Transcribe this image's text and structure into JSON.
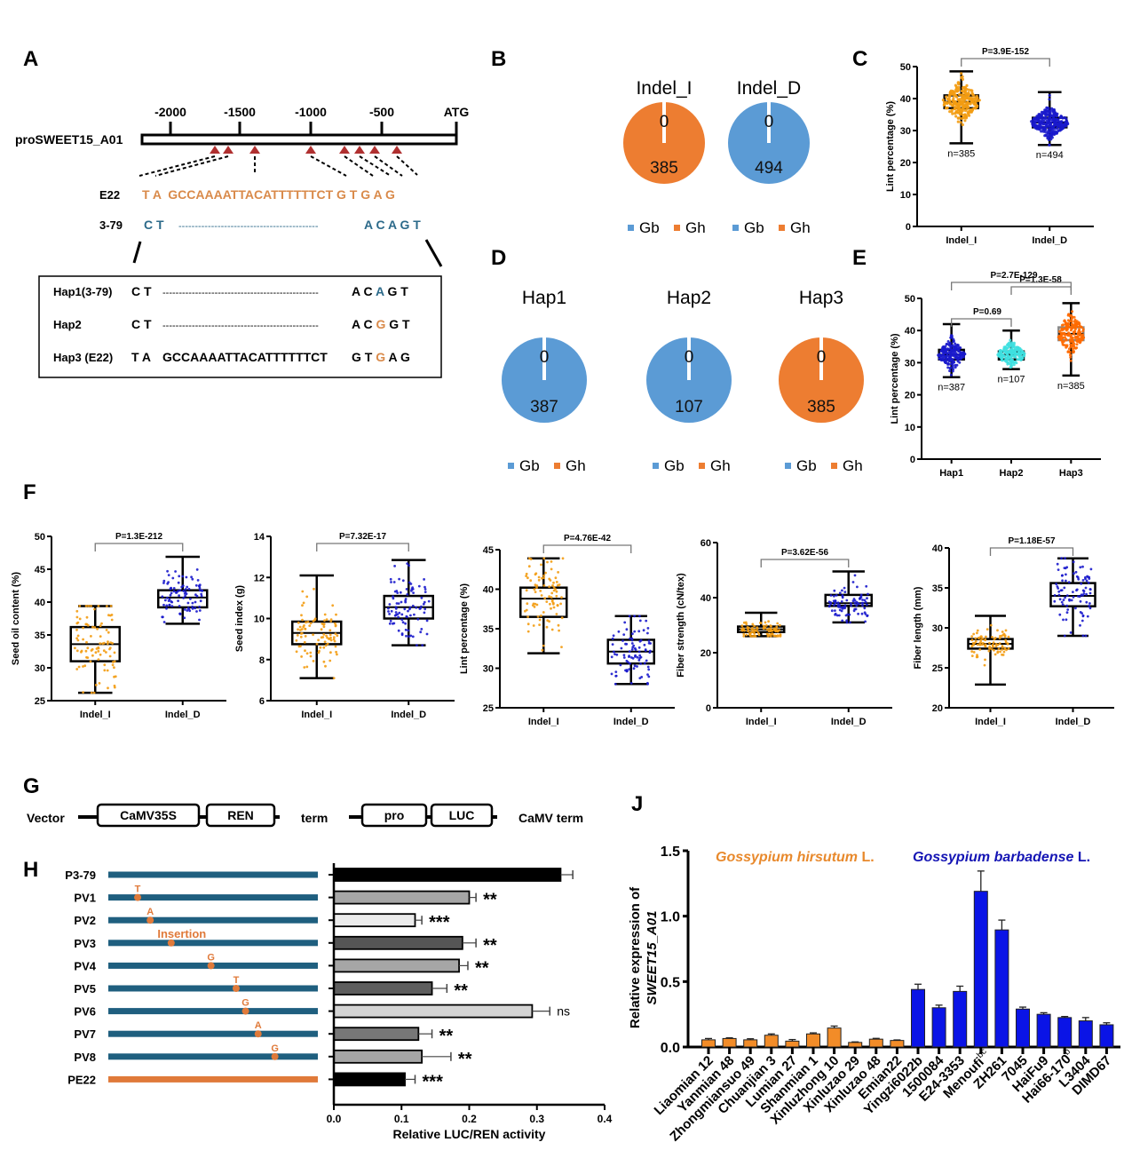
{
  "colors": {
    "orange": "#ED7D31",
    "blue": "#5B9BD5",
    "seq_orange": "#D98A4A",
    "seq_blue": "#2C6A8A",
    "dot_orange": "#F39C12",
    "dot_blue": "#1A1ACC",
    "cyan": "#3FE0E0",
    "hap3_orange": "#FF6A00",
    "promoter_blue": "#1F5F7F",
    "promoter_orange": "#E07A3A",
    "triangle_red": "#B03030",
    "bar_blue": "#0A14E6"
  },
  "panels": {
    "A": {
      "letter": "A",
      "gene_label": "proSWEET15_A01",
      "ticks": [
        "-2000",
        "-1500",
        "-1000",
        "-500",
        "ATG"
      ],
      "e22_label": "E22",
      "e22_seq": "T A  GCCAAAATTACATTTTTTCT G T G A G",
      "s379_label": "3-79",
      "s379_left": "C T",
      "s379_dashes": "-------------------------------------------",
      "s379_right": "A C A G T",
      "haplotypes": [
        {
          "label": "Hap1(3-79)",
          "left": "C T",
          "middle": "------------------------------------------------",
          "pre": "A C ",
          "var": "A",
          "post": " G T",
          "var_color": "blue"
        },
        {
          "label": "Hap2",
          "left": "C T",
          "middle": "------------------------------------------------",
          "pre": "A C ",
          "var": "G",
          "post": " G T",
          "var_color": "orange"
        },
        {
          "label": "Hap3 (E22)",
          "left": "T A",
          "middle": "GCCAAAATTACATTTTTTCT",
          "pre": "G T ",
          "var": "G",
          "post": " A G",
          "var_color": "orange"
        }
      ]
    },
    "B": {
      "letter": "B",
      "pies": [
        {
          "title": "Indel_I",
          "slices": [
            {
              "name": "Gb",
              "value": 0
            },
            {
              "name": "Gh",
              "value": 385
            }
          ],
          "dominant": "Gh"
        },
        {
          "title": "Indel_D",
          "slices": [
            {
              "name": "Gb",
              "value": 494
            },
            {
              "name": "Gh",
              "value": 0
            }
          ],
          "dominant": "Gb"
        }
      ],
      "legend": [
        "Gb",
        "Gh"
      ]
    },
    "D": {
      "letter": "D",
      "pies": [
        {
          "title": "Hap1",
          "slices": [
            {
              "name": "Gb",
              "value": 387
            },
            {
              "name": "Gh",
              "value": 0
            }
          ],
          "dominant": "Gb"
        },
        {
          "title": "Hap2",
          "slices": [
            {
              "name": "Gb",
              "value": 107
            },
            {
              "name": "Gh",
              "value": 0
            }
          ],
          "dominant": "Gb"
        },
        {
          "title": "Hap3",
          "slices": [
            {
              "name": "Gb",
              "value": 0
            },
            {
              "name": "Gh",
              "value": 385
            }
          ],
          "dominant": "Gh"
        }
      ],
      "legend": [
        "Gb",
        "Gh"
      ]
    },
    "C": {
      "letter": "C"
    },
    "E": {
      "letter": "E"
    },
    "F": {
      "letter": "F"
    },
    "G": {
      "letter": "G",
      "vector_label": "Vector",
      "boxes": [
        "CaMV35S",
        "REN",
        "pro",
        "LUC"
      ],
      "term1": "term",
      "term2": "CaMV term"
    },
    "H": {
      "letter": "H"
    },
    "J": {
      "letter": "J"
    }
  },
  "chart_data": [
    {
      "id": "C",
      "type": "box",
      "ylabel": "Lint percentage (%)",
      "ylim": [
        0,
        50
      ],
      "yticks": [
        0,
        10,
        20,
        30,
        40,
        50
      ],
      "categories": [
        "Indel_I",
        "Indel_D"
      ],
      "boxes": [
        {
          "name": "Indel_I",
          "min": 26,
          "q1": 37,
          "median": 39,
          "q3": 41,
          "max": 48.5,
          "n_label": "n=385",
          "color": "dot_orange"
        },
        {
          "name": "Indel_D",
          "min": 25.5,
          "q1": 31,
          "median": 32.5,
          "q3": 34,
          "max": 42,
          "n_label": "n=494",
          "color": "dot_blue"
        }
      ],
      "brackets": [
        {
          "from": 0,
          "to": 1,
          "label": "P=3.9E-152"
        }
      ]
    },
    {
      "id": "E",
      "type": "box",
      "ylabel": "Lint percentage (%)",
      "ylim": [
        0,
        50
      ],
      "yticks": [
        0,
        10,
        20,
        30,
        40,
        50
      ],
      "categories": [
        "Hap1",
        "Hap2",
        "Hap3"
      ],
      "boxes": [
        {
          "name": "Hap1",
          "min": 25.5,
          "q1": 31,
          "median": 32.5,
          "q3": 34,
          "max": 42,
          "n_label": "n=387",
          "color": "dot_blue"
        },
        {
          "name": "Hap2",
          "min": 28,
          "q1": 31,
          "median": 32.5,
          "q3": 33.5,
          "max": 40,
          "n_label": "n=107",
          "color": "cyan"
        },
        {
          "name": "Hap3",
          "min": 26,
          "q1": 37,
          "median": 39,
          "q3": 41,
          "max": 48.5,
          "n_label": "n=385",
          "color": "hap3_orange"
        }
      ],
      "brackets": [
        {
          "from": 0,
          "to": 1,
          "label": "P=0.69"
        },
        {
          "from": 1,
          "to": 2,
          "label": "P=1.3E-58"
        },
        {
          "from": 0,
          "to": 2,
          "label": "P=2.7E-129"
        }
      ]
    },
    {
      "id": "F1",
      "type": "box",
      "ylabel": "Seed oil content (%)",
      "ylim": [
        25,
        50
      ],
      "yticks": [
        25,
        30,
        35,
        40,
        45,
        50
      ],
      "categories": [
        "Indel_I",
        "Indel_D"
      ],
      "boxes": [
        {
          "name": "Indel_I",
          "min": 26.2,
          "q1": 31,
          "median": 33.6,
          "q3": 36.2,
          "max": 39.4,
          "color": "dot_orange"
        },
        {
          "name": "Indel_D",
          "min": 36.7,
          "q1": 39.2,
          "median": 40.7,
          "q3": 41.8,
          "max": 46.9,
          "color": "dot_blue"
        }
      ],
      "brackets": [
        {
          "from": 0,
          "to": 1,
          "label": "P=1.3E-212"
        }
      ]
    },
    {
      "id": "F2",
      "type": "box",
      "ylabel": "Seed index (g)",
      "ylim": [
        6,
        14
      ],
      "yticks": [
        6,
        8,
        10,
        12,
        14
      ],
      "categories": [
        "Indel_I",
        "Indel_D"
      ],
      "boxes": [
        {
          "name": "Indel_I",
          "min": 7.1,
          "q1": 8.75,
          "median": 9.3,
          "q3": 9.85,
          "max": 12.1,
          "color": "dot_orange"
        },
        {
          "name": "Indel_D",
          "min": 8.7,
          "q1": 10.0,
          "median": 10.55,
          "q3": 11.1,
          "max": 12.85,
          "color": "dot_blue"
        }
      ],
      "brackets": [
        {
          "from": 0,
          "to": 1,
          "label": "P=7.32E-17"
        }
      ]
    },
    {
      "id": "F3",
      "type": "box",
      "ylabel": "Lint percentage (%)",
      "ylim": [
        25,
        45
      ],
      "yticks": [
        25,
        30,
        35,
        40,
        45
      ],
      "categories": [
        "Indel_I",
        "Indel_D"
      ],
      "boxes": [
        {
          "name": "Indel_I",
          "min": 31.9,
          "q1": 36.5,
          "median": 38.8,
          "q3": 40.2,
          "max": 43.9,
          "color": "dot_orange"
        },
        {
          "name": "Indel_D",
          "min": 28.0,
          "q1": 30.6,
          "median": 32.1,
          "q3": 33.6,
          "max": 36.6,
          "color": "dot_blue"
        }
      ],
      "brackets": [
        {
          "from": 0,
          "to": 1,
          "label": "P=4.76E-42"
        }
      ]
    },
    {
      "id": "F4",
      "type": "box",
      "ylabel": "Fiber strength (cN/tex)",
      "ylim": [
        0,
        60
      ],
      "yticks": [
        0,
        20,
        40,
        60
      ],
      "categories": [
        "Indel_I",
        "Indel_D"
      ],
      "boxes": [
        {
          "name": "Indel_I",
          "min": 26,
          "q1": 27.5,
          "median": 28.5,
          "q3": 29.5,
          "max": 34.5,
          "color": "dot_orange"
        },
        {
          "name": "Indel_D",
          "min": 31,
          "q1": 37,
          "median": 38,
          "q3": 41,
          "max": 49.5,
          "color": "dot_blue"
        }
      ],
      "brackets": [
        {
          "from": 0,
          "to": 1,
          "label": "P=3.62E-56"
        }
      ]
    },
    {
      "id": "F5",
      "type": "box",
      "ylabel": "Fiber length (mm)",
      "ylim": [
        20,
        40
      ],
      "yticks": [
        20,
        25,
        30,
        35,
        40
      ],
      "categories": [
        "Indel_I",
        "Indel_D"
      ],
      "boxes": [
        {
          "name": "Indel_I",
          "min": 22.9,
          "q1": 27.4,
          "median": 28.0,
          "q3": 28.6,
          "max": 31.5,
          "color": "dot_orange"
        },
        {
          "name": "Indel_D",
          "min": 29.0,
          "q1": 32.7,
          "median": 34.0,
          "q3": 35.6,
          "max": 38.7,
          "color": "dot_blue"
        }
      ],
      "brackets": [
        {
          "from": 0,
          "to": 1,
          "label": "P=1.18E-57"
        }
      ]
    },
    {
      "id": "H",
      "type": "bar",
      "orientation": "horizontal",
      "xlabel": "Relative LUC/REN activity",
      "xlim": [
        0,
        0.4
      ],
      "xticks": [
        "0.0",
        "0.1",
        "0.2",
        "0.3",
        "0.4"
      ],
      "categories": [
        "P3-79",
        "PV1",
        "PV2",
        "PV3",
        "PV4",
        "PV5",
        "PV6",
        "PV7",
        "PV8",
        "PE22"
      ],
      "values": [
        0.335,
        0.2,
        0.12,
        0.19,
        0.185,
        0.145,
        0.293,
        0.125,
        0.13,
        0.105
      ],
      "errors": [
        0.018,
        0.01,
        0.01,
        0.02,
        0.013,
        0.022,
        0.026,
        0.02,
        0.043,
        0.015
      ],
      "significance": [
        "",
        "**",
        "***",
        "**",
        "**",
        "**",
        "ns",
        "**",
        "**",
        "***"
      ],
      "bar_fills": [
        "#000000",
        "#A6A6A6",
        "#EBEBEB",
        "#555555",
        "#A6A6A6",
        "#5E5E5E",
        "#D4D4D4",
        "#777777",
        "#A6A6A6",
        "#000000"
      ],
      "promoter_variants": [
        {
          "row": "PV1",
          "label": "T",
          "position": 0.14
        },
        {
          "row": "PV2",
          "label": "A",
          "position": 0.2
        },
        {
          "row": "PV3",
          "label": "Insertion",
          "position": 0.3
        },
        {
          "row": "PV4",
          "label": "G",
          "position": 0.49
        },
        {
          "row": "PV5",
          "label": "T",
          "position": 0.61
        },
        {
          "row": "PV6",
          "label": "G",
          "position": 0.655
        },
        {
          "row": "PV7",
          "label": "A",
          "position": 0.715
        },
        {
          "row": "PV8",
          "label": "G",
          "position": 0.795
        }
      ]
    },
    {
      "id": "J",
      "type": "bar",
      "ylabel_line1": "Relative expression of",
      "ylabel_line2": "SWEET15_A01",
      "ylim": [
        0,
        1.5
      ],
      "yticks": [
        "0.0",
        "0.5",
        "1.0",
        "1.5"
      ],
      "group_labels": [
        {
          "text": "Gossypium hirsutum",
          "suffix": " L.",
          "color": "#E8892C"
        },
        {
          "text": "Gossypium barbadense",
          "suffix": " L.",
          "color": "#1414B4"
        }
      ],
      "categories": [
        "Liaomian 12",
        "Yanmian 48",
        "Zhongmiansuo 49",
        "Chuanjian 3",
        "Lumian 27",
        "Shanmian 1",
        "Xinluzhong 10",
        "Xinluzao 29",
        "Xinluzao 48",
        "Emian22",
        "Yingzi6022b",
        "1500084",
        "E24-3353",
        "Menoufi",
        "ZH261",
        "7045",
        "HaiFu9",
        "Hai66-170",
        "L3404",
        "DIMD67"
      ],
      "superscripts": [
        "",
        "",
        "",
        "",
        "",
        "",
        "",
        "",
        "",
        "",
        "",
        "",
        "",
        "bc",
        "",
        "",
        "",
        "b",
        "",
        ""
      ],
      "values": [
        0.055,
        0.065,
        0.055,
        0.09,
        0.045,
        0.1,
        0.145,
        0.035,
        0.06,
        0.05,
        0.44,
        0.3,
        0.425,
        1.19,
        0.895,
        0.29,
        0.25,
        0.225,
        0.2,
        0.17
      ],
      "errors": [
        0.01,
        0.005,
        0.008,
        0.01,
        0.012,
        0.008,
        0.015,
        0.004,
        0.006,
        0.004,
        0.04,
        0.02,
        0.04,
        0.155,
        0.075,
        0.015,
        0.012,
        0.008,
        0.025,
        0.015
      ],
      "groups": [
        "hirsutum",
        "hirsutum",
        "hirsutum",
        "hirsutum",
        "hirsutum",
        "hirsutum",
        "hirsutum",
        "hirsutum",
        "hirsutum",
        "hirsutum",
        "barbadense",
        "barbadense",
        "barbadense",
        "barbadense",
        "barbadense",
        "barbadense",
        "barbadense",
        "barbadense",
        "barbadense",
        "barbadense"
      ]
    }
  ]
}
